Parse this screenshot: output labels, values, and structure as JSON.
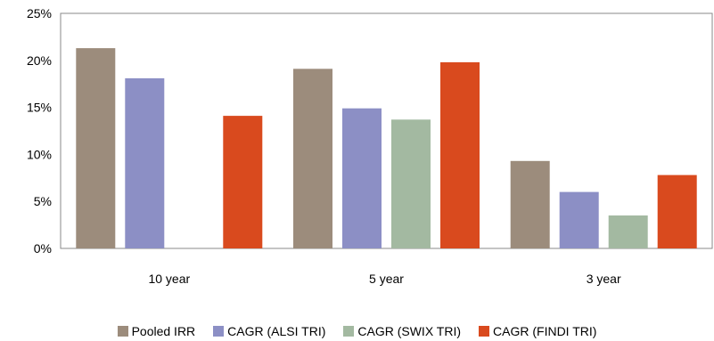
{
  "chart_data": {
    "type": "bar",
    "categories": [
      "10 year",
      "5 year",
      "3 year"
    ],
    "series": [
      {
        "name": "Pooled IRR",
        "color": "#9c8c7c",
        "values": [
          21.3,
          19.1,
          9.3
        ]
      },
      {
        "name": "CAGR (ALSI TRI)",
        "color": "#8c8fc5",
        "values": [
          18.1,
          14.9,
          6.0
        ]
      },
      {
        "name": "CAGR (SWIX TRI)",
        "color": "#a3b9a1",
        "values": [
          null,
          13.7,
          3.5
        ]
      },
      {
        "name": "CAGR (FINDI TRI)",
        "color": "#d94a1e",
        "values": [
          14.1,
          19.8,
          7.8
        ]
      }
    ],
    "yticks": [
      "0%",
      "5%",
      "10%",
      "15%",
      "20%",
      "25%"
    ],
    "ylim": [
      0,
      25
    ],
    "title": "",
    "xlabel": "",
    "ylabel": "",
    "grid": false,
    "legend_position": "bottom"
  }
}
